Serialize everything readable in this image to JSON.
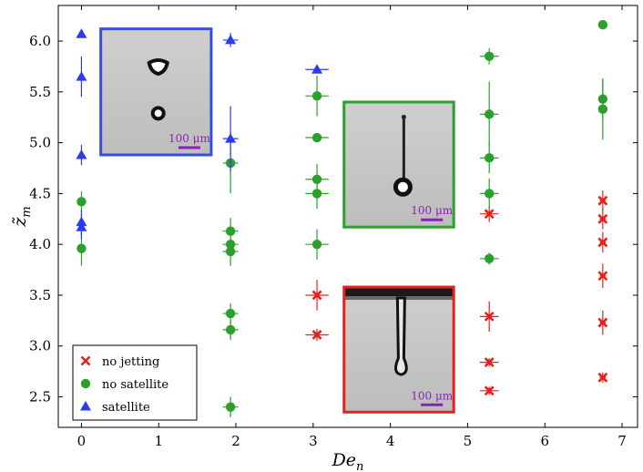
{
  "chart_data": {
    "type": "scatter",
    "xlabel": "De",
    "xlabel_sub": "n",
    "ylabel": "z̃",
    "ylabel_sub": "m",
    "xlim": [
      -0.3,
      7.2
    ],
    "ylim": [
      2.2,
      6.35
    ],
    "xticks": [
      0,
      1,
      2,
      3,
      4,
      5,
      6,
      7
    ],
    "yticks": [
      2.5,
      3.0,
      3.5,
      4.0,
      4.5,
      5.0,
      5.5,
      6.0
    ],
    "xtick_labels": [
      "0",
      "1",
      "2",
      "3",
      "4",
      "5",
      "6",
      "7"
    ],
    "ytick_labels": [
      "2.5",
      "3.0",
      "3.5",
      "4.0",
      "4.5",
      "5.0",
      "5.5",
      "6.0"
    ],
    "grid": false,
    "legend_position": "lower-left",
    "series": [
      {
        "name": "no jetting",
        "marker": "x",
        "color": "#e8201a",
        "points": [
          {
            "x": 3.05,
            "y": 3.5,
            "xerr": 0.15,
            "yerr": 0.15
          },
          {
            "x": 3.05,
            "y": 3.11,
            "xerr": 0.15,
            "yerr": 0.06
          },
          {
            "x": 5.28,
            "y": 4.3,
            "xerr": 0.12,
            "yerr": 0.08
          },
          {
            "x": 5.28,
            "y": 3.29,
            "xerr": 0.12,
            "yerr": 0.15
          },
          {
            "x": 5.28,
            "y": 2.84,
            "xerr": 0.12,
            "yerr": 0.04
          },
          {
            "x": 5.28,
            "y": 2.56,
            "xerr": 0.12,
            "yerr": 0.04
          },
          {
            "x": 6.75,
            "y": 4.43,
            "xerr": 0.04,
            "yerr": 0.1
          },
          {
            "x": 6.75,
            "y": 4.25,
            "xerr": 0.04,
            "yerr": 0.1
          },
          {
            "x": 6.75,
            "y": 4.02,
            "xerr": 0.04,
            "yerr": 0.1
          },
          {
            "x": 6.75,
            "y": 3.69,
            "xerr": 0.04,
            "yerr": 0.12
          },
          {
            "x": 6.75,
            "y": 3.23,
            "xerr": 0.04,
            "yerr": 0.12
          },
          {
            "x": 6.75,
            "y": 2.69,
            "xerr": 0.04,
            "yerr": 0.05
          }
        ]
      },
      {
        "name": "no satellite",
        "marker": "circle",
        "color": "#2ca02c",
        "points": [
          {
            "x": 0.0,
            "y": 4.42,
            "xerr": 0.0,
            "yerr": 0.1
          },
          {
            "x": 0.0,
            "y": 3.96,
            "xerr": 0.0,
            "yerr": 0.17
          },
          {
            "x": 1.93,
            "y": 4.8,
            "xerr": 0.1,
            "yerr": 0.3
          },
          {
            "x": 1.93,
            "y": 4.13,
            "xerr": 0.1,
            "yerr": 0.13
          },
          {
            "x": 1.93,
            "y": 4.0,
            "xerr": 0.1,
            "yerr": 0.07
          },
          {
            "x": 1.93,
            "y": 3.93,
            "xerr": 0.1,
            "yerr": 0.14
          },
          {
            "x": 1.93,
            "y": 3.32,
            "xerr": 0.1,
            "yerr": 0.1
          },
          {
            "x": 1.93,
            "y": 3.16,
            "xerr": 0.1,
            "yerr": 0.1
          },
          {
            "x": 1.93,
            "y": 2.4,
            "xerr": 0.1,
            "yerr": 0.1
          },
          {
            "x": 3.05,
            "y": 5.46,
            "xerr": 0.15,
            "yerr": 0.2
          },
          {
            "x": 3.05,
            "y": 5.05,
            "xerr": 0.15,
            "yerr": 0.03
          },
          {
            "x": 3.05,
            "y": 4.64,
            "xerr": 0.15,
            "yerr": 0.15
          },
          {
            "x": 3.05,
            "y": 4.5,
            "xerr": 0.15,
            "yerr": 0.15
          },
          {
            "x": 3.05,
            "y": 4.0,
            "xerr": 0.15,
            "yerr": 0.15
          },
          {
            "x": 5.28,
            "y": 5.85,
            "xerr": 0.12,
            "yerr": 0.08
          },
          {
            "x": 5.28,
            "y": 5.28,
            "xerr": 0.12,
            "yerr": 0.32
          },
          {
            "x": 5.28,
            "y": 4.85,
            "xerr": 0.12,
            "yerr": 0.15
          },
          {
            "x": 5.28,
            "y": 4.5,
            "xerr": 0.12,
            "yerr": 0.15
          },
          {
            "x": 5.28,
            "y": 3.86,
            "xerr": 0.12,
            "yerr": 0.06
          },
          {
            "x": 6.75,
            "y": 6.16,
            "xerr": 0.0,
            "yerr": 0.0
          },
          {
            "x": 6.75,
            "y": 5.43,
            "xerr": 0.0,
            "yerr": 0.2
          },
          {
            "x": 6.75,
            "y": 5.33,
            "xerr": 0.0,
            "yerr": 0.3
          }
        ]
      },
      {
        "name": "satellite",
        "marker": "triangle",
        "color": "#2b3bf0",
        "points": [
          {
            "x": 0.0,
            "y": 6.07,
            "xerr": 0.0,
            "yerr": 0.03
          },
          {
            "x": 0.0,
            "y": 5.65,
            "xerr": 0.0,
            "yerr": 0.2
          },
          {
            "x": 0.0,
            "y": 4.88,
            "xerr": 0.0,
            "yerr": 0.1
          },
          {
            "x": 0.0,
            "y": 4.22,
            "xerr": 0.0,
            "yerr": 0.12
          },
          {
            "x": 0.0,
            "y": 4.17,
            "xerr": 0.0,
            "yerr": 0.12
          },
          {
            "x": 1.93,
            "y": 6.01,
            "xerr": 0.1,
            "yerr": 0.07
          },
          {
            "x": 1.93,
            "y": 5.04,
            "xerr": 0.1,
            "yerr": 0.32
          },
          {
            "x": 3.05,
            "y": 5.72,
            "xerr": 0.15,
            "yerr": 0.02
          }
        ]
      }
    ],
    "insets": [
      {
        "name": "satellite-inset",
        "border_color": "#3550e0",
        "scale_label": "100 μm",
        "scale_color": "#8a23b5",
        "x_range": [
          0.25,
          1.68
        ],
        "y_range": [
          4.88,
          6.12
        ]
      },
      {
        "name": "no-satellite-inset",
        "border_color": "#2ca02c",
        "scale_label": "100 μm",
        "scale_color": "#8a23b5",
        "x_range": [
          3.4,
          4.82
        ],
        "y_range": [
          4.17,
          5.4
        ]
      },
      {
        "name": "no-jetting-inset",
        "border_color": "#e8201a",
        "scale_label": "100 μm",
        "scale_color": "#8a23b5",
        "x_range": [
          3.4,
          4.82
        ],
        "y_range": [
          2.35,
          3.58
        ]
      }
    ]
  }
}
